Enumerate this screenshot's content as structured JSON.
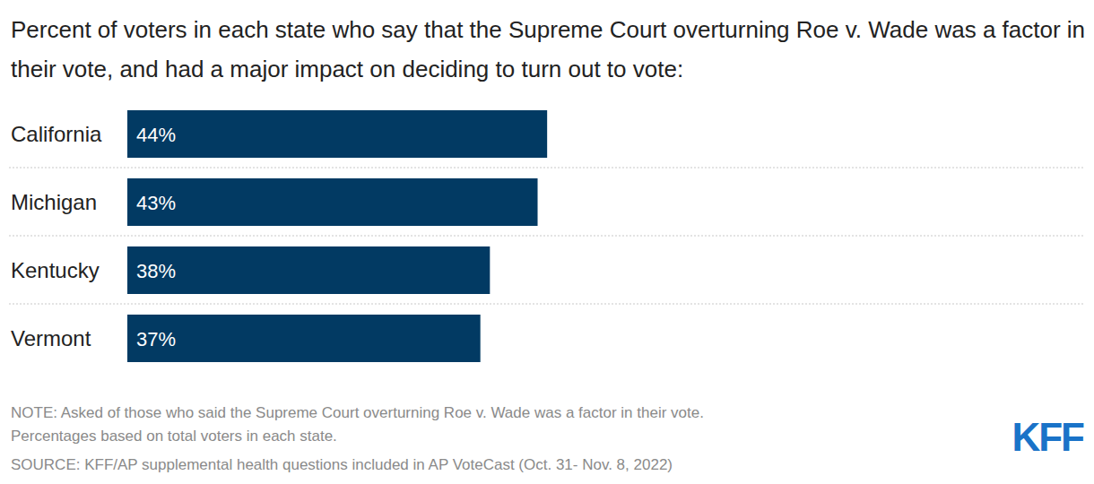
{
  "chart_data": {
    "type": "bar",
    "orientation": "horizontal",
    "title": "Percent of voters in each state who say that the Supreme Court overturning Roe v. Wade was a factor in their vote, and had a major impact on deciding to turn out to vote:",
    "categories": [
      "California",
      "Michigan",
      "Kentucky",
      "Vermont"
    ],
    "values": [
      44,
      43,
      38,
      37
    ],
    "value_labels": [
      "44%",
      "43%",
      "38%",
      "37%"
    ],
    "color": "#023a63",
    "xlim": [
      0,
      100
    ],
    "data_labels": true,
    "tick_labels": "y",
    "grid": false,
    "notes": [
      "NOTE: Asked of those who said the Supreme Court overturning Roe v. Wade was a factor in their vote.",
      "Percentages based on total voters in each state.",
      "SOURCE: KFF/AP supplemental health questions included in AP VoteCast (Oct. 31- Nov. 8, 2022)"
    ],
    "logo": "KFF"
  }
}
